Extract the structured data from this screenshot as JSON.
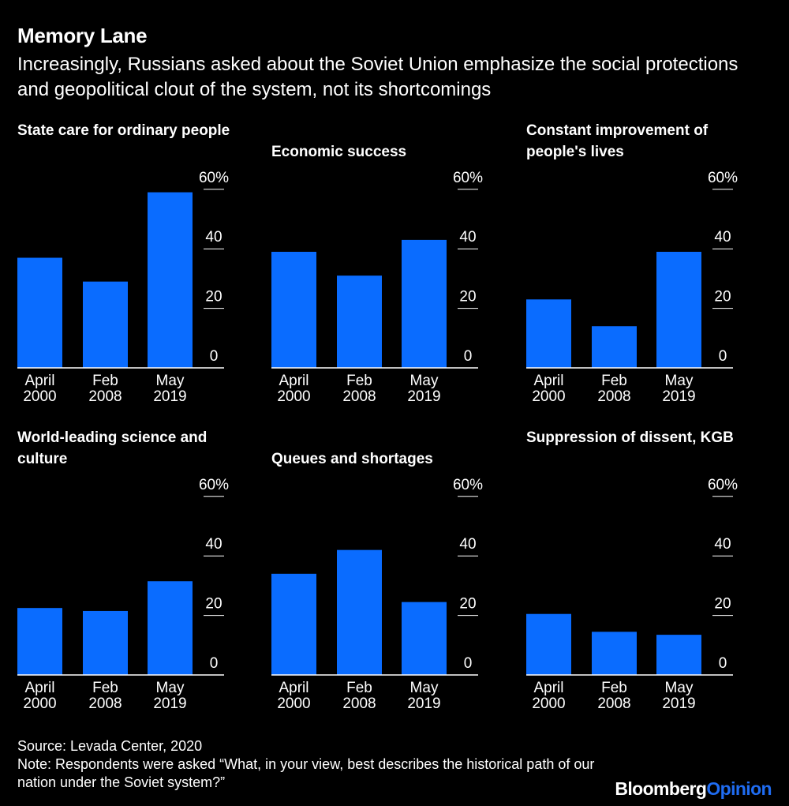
{
  "title": "Memory Lane",
  "subtitle": "Increasingly, Russians asked about the Soviet Union emphasize the social protections and geopolitical clout of the system, not its shortcomings",
  "colors": {
    "bar": "#0a6cff",
    "background": "#000000",
    "text": "#ffffff",
    "brand_accent": "#1f6cf2"
  },
  "chart_data": [
    {
      "type": "bar",
      "title": "State care for ordinary people",
      "categories": [
        [
          "April",
          "2000"
        ],
        [
          "Feb",
          "2008"
        ],
        [
          "May",
          "2019"
        ]
      ],
      "values": [
        37,
        29,
        59
      ],
      "ylim": [
        0,
        60
      ],
      "yticks": [
        0,
        20,
        40,
        60
      ],
      "ytick_labels": [
        "0",
        "20",
        "40",
        "60%"
      ]
    },
    {
      "type": "bar",
      "title": "Economic success",
      "categories": [
        [
          "April",
          "2000"
        ],
        [
          "Feb",
          "2008"
        ],
        [
          "May",
          "2019"
        ]
      ],
      "values": [
        39,
        31,
        43
      ],
      "ylim": [
        0,
        60
      ],
      "yticks": [
        0,
        20,
        40,
        60
      ],
      "ytick_labels": [
        "0",
        "20",
        "40",
        "60%"
      ]
    },
    {
      "type": "bar",
      "title": "Constant improvement of people's lives",
      "categories": [
        [
          "April",
          "2000"
        ],
        [
          "Feb",
          "2008"
        ],
        [
          "May",
          "2019"
        ]
      ],
      "values": [
        23,
        14,
        39
      ],
      "ylim": [
        0,
        60
      ],
      "yticks": [
        0,
        20,
        40,
        60
      ],
      "ytick_labels": [
        "0",
        "20",
        "40",
        "60%"
      ]
    },
    {
      "type": "bar",
      "title": "World-leading science and culture",
      "categories": [
        [
          "April",
          "2000"
        ],
        [
          "Feb",
          "2008"
        ],
        [
          "May",
          "2019"
        ]
      ],
      "values": [
        22.5,
        21.5,
        31.5
      ],
      "ylim": [
        0,
        60
      ],
      "yticks": [
        0,
        20,
        40,
        60
      ],
      "ytick_labels": [
        "0",
        "20",
        "40",
        "60%"
      ]
    },
    {
      "type": "bar",
      "title": "Queues and shortages",
      "categories": [
        [
          "April",
          "2000"
        ],
        [
          "Feb",
          "2008"
        ],
        [
          "May",
          "2019"
        ]
      ],
      "values": [
        34,
        42,
        24.5
      ],
      "ylim": [
        0,
        60
      ],
      "yticks": [
        0,
        20,
        40,
        60
      ],
      "ytick_labels": [
        "0",
        "20",
        "40",
        "60%"
      ]
    },
    {
      "type": "bar",
      "title": "Suppression of dissent, KGB",
      "categories": [
        [
          "April",
          "2000"
        ],
        [
          "Feb",
          "2008"
        ],
        [
          "May",
          "2019"
        ]
      ],
      "values": [
        20.5,
        14.5,
        13.5
      ],
      "ylim": [
        0,
        60
      ],
      "yticks": [
        0,
        20,
        40,
        60
      ],
      "ytick_labels": [
        "0",
        "20",
        "40",
        "60%"
      ]
    }
  ],
  "source": "Source: Levada Center, 2020",
  "note": "Note: Respondents were asked “What, in your view, best describes the historical path of our nation under the Soviet system?”",
  "logo": {
    "brand": "Bloomberg",
    "accent": "Opinion"
  }
}
